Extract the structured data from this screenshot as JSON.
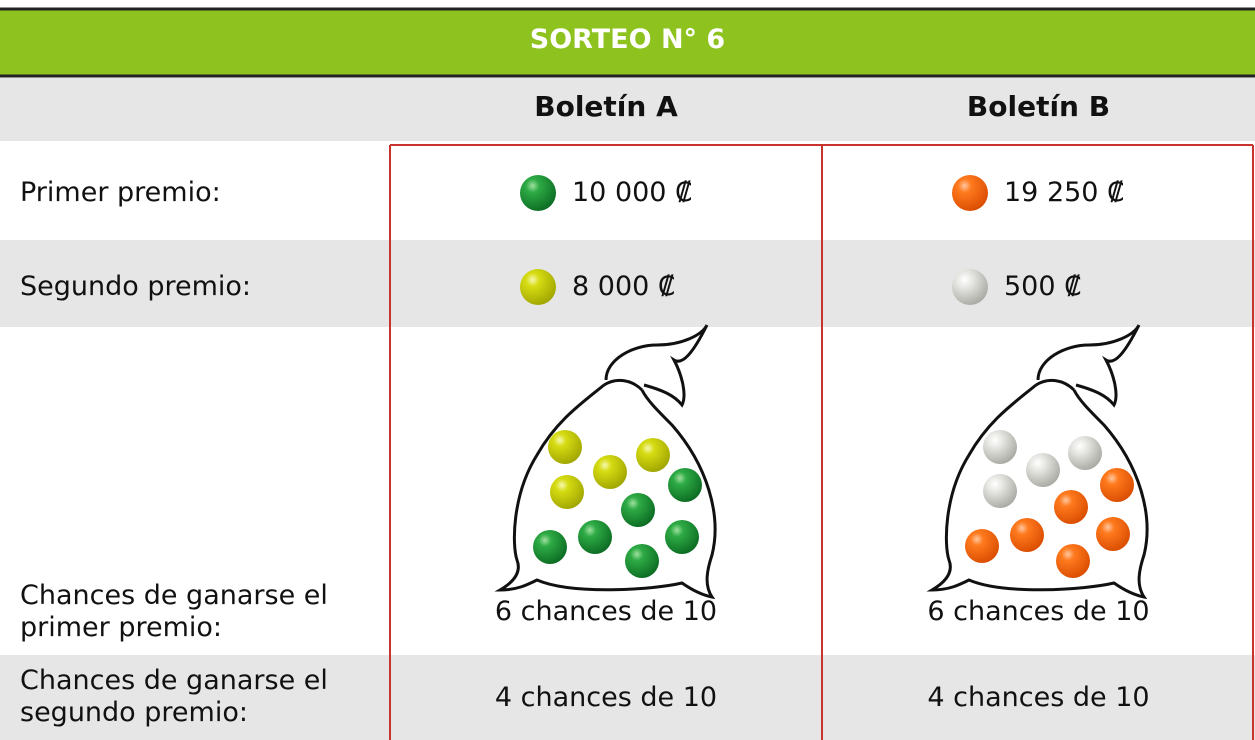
{
  "header": {
    "title": "SORTEO N° 6"
  },
  "table": {
    "column_headers": [
      "Boletín A",
      "Boletín B"
    ],
    "rows": [
      {
        "label": "Primer premio:",
        "cells": [
          "10 000 ₡",
          "19 250 ₡"
        ]
      },
      {
        "label": "Segundo premio:",
        "cells": [
          "8 000 ₡",
          "500 ₡"
        ]
      },
      {
        "label": "Chances de ganarse el primer premio:",
        "cells": [
          "6 chances de 10",
          "6 chances de 10"
        ]
      },
      {
        "label": "Chances de ganarse el segundo premio:",
        "cells": [
          "4 chances de 10",
          "4 chances de 10"
        ]
      }
    ]
  }
}
